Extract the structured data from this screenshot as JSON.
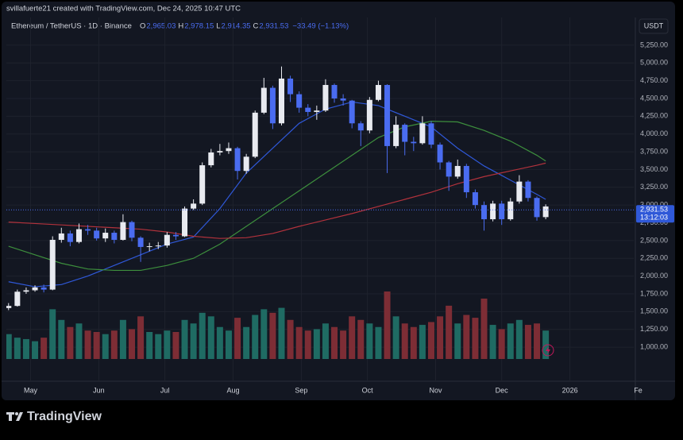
{
  "attribution": "svillafuerte21 created with TradingView.com, Dec 24, 2025 10:47 UTC",
  "symbol": "Ethereum / TetherUS · 1D · Binance",
  "ohlc": [
    {
      "label": "O",
      "value": "2,965.03"
    },
    {
      "label": "H",
      "value": "2,978.15"
    },
    {
      "label": "L",
      "value": "2,914.35"
    },
    {
      "label": "C",
      "value": "2,931.53"
    }
  ],
  "change": "−33.49 (−1.13%)",
  "currency": "USDT",
  "brand": "TradingView",
  "chart_data": {
    "type": "candlestick",
    "x": [
      0,
      4,
      8,
      12,
      16,
      20,
      24,
      28,
      32,
      36,
      40,
      44,
      48,
      52,
      56,
      60,
      64,
      68,
      72,
      76,
      80,
      84,
      88,
      92,
      96,
      100,
      104,
      108,
      112,
      116,
      120,
      124,
      128,
      132,
      136,
      140,
      144,
      148,
      152,
      156,
      160,
      164,
      168,
      172,
      176,
      180,
      184,
      188,
      192,
      196,
      200,
      204,
      208,
      212,
      216,
      220,
      224,
      228,
      232,
      236,
      240,
      244
    ],
    "open": [
      1550,
      1580,
      1780,
      1800,
      1840,
      1810,
      2510,
      2600,
      2480,
      2660,
      2640,
      2530,
      2610,
      2510,
      2760,
      2540,
      2410,
      2420,
      2430,
      2580,
      2560,
      2950,
      3020,
      3560,
      3740,
      3760,
      3800,
      3480,
      3680,
      4300,
      4650,
      4150,
      4780,
      4560,
      4370,
      4310,
      4330,
      4690,
      4500,
      4470,
      4150,
      4050,
      4480,
      4690,
      3830,
      4130,
      3890,
      3870,
      4150,
      3850,
      3600,
      3400,
      3550,
      3180,
      3000,
      2800,
      3020,
      2800,
      3050,
      3330,
      3100,
      2830
    ],
    "high": [
      1620,
      1810,
      1840,
      1870,
      1880,
      2560,
      2680,
      2640,
      2740,
      2720,
      2680,
      2670,
      2640,
      2870,
      2780,
      2560,
      2470,
      2480,
      2620,
      2620,
      2980,
      3080,
      3600,
      3790,
      3860,
      3880,
      3820,
      3720,
      4330,
      4790,
      4680,
      4950,
      4820,
      4600,
      4420,
      4400,
      4770,
      4710,
      4560,
      4480,
      4180,
      4520,
      4750,
      4700,
      4250,
      4150,
      3960,
      4250,
      4180,
      3880,
      3620,
      3640,
      3580,
      3220,
      3050,
      3060,
      3060,
      3100,
      3420,
      3350,
      3120,
      3010
    ],
    "low": [
      1520,
      1570,
      1750,
      1780,
      1770,
      1800,
      2470,
      2420,
      2460,
      2580,
      2500,
      2480,
      2460,
      2500,
      2490,
      2200,
      2350,
      2380,
      2400,
      2510,
      2550,
      2930,
      3000,
      3530,
      3700,
      3720,
      3360,
      3440,
      3660,
      4280,
      4070,
      4120,
      4450,
      4300,
      4250,
      4200,
      4310,
      4440,
      4400,
      4080,
      3830,
      4010,
      4460,
      3450,
      3800,
      3700,
      3760,
      3850,
      3800,
      3500,
      3200,
      3370,
      3100,
      2950,
      2640,
      2770,
      2720,
      2780,
      3020,
      3050,
      2780,
      2800
    ],
    "close": [
      1580,
      1780,
      1800,
      1840,
      1810,
      2510,
      2600,
      2480,
      2660,
      2640,
      2530,
      2610,
      2510,
      2760,
      2540,
      2410,
      2420,
      2430,
      2580,
      2560,
      2950,
      3020,
      3560,
      3740,
      3760,
      3800,
      3480,
      3680,
      4300,
      4650,
      4150,
      4780,
      4560,
      4370,
      4310,
      4330,
      4690,
      4500,
      4470,
      4150,
      4050,
      4480,
      4690,
      3830,
      4130,
      3890,
      3870,
      4150,
      3850,
      3600,
      3400,
      3550,
      3180,
      3000,
      2800,
      3020,
      2800,
      3050,
      3330,
      3100,
      2830,
      2980
    ],
    "volume": [
      35,
      30,
      28,
      25,
      30,
      70,
      55,
      45,
      50,
      40,
      38,
      35,
      40,
      55,
      42,
      60,
      38,
      35,
      40,
      38,
      55,
      50,
      65,
      60,
      45,
      40,
      58,
      45,
      62,
      70,
      65,
      72,
      55,
      45,
      40,
      42,
      50,
      45,
      40,
      60,
      55,
      50,
      45,
      95,
      60,
      50,
      45,
      48,
      52,
      60,
      75,
      50,
      62,
      58,
      85,
      48,
      42,
      50,
      55,
      48,
      50,
      40
    ],
    "up_color": "#e8eaf0",
    "down_color": "#4a6cf0",
    "volume_up_color": "#1f6b63",
    "volume_down_color": "#7d2d35",
    "moving_averages": [
      {
        "color": "#2f58d8",
        "x": [
          0,
          12,
          24,
          36,
          48,
          60,
          72,
          84,
          96,
          108,
          120,
          132,
          144,
          156,
          168,
          180,
          192,
          204,
          216,
          228,
          240,
          244
        ],
        "values": [
          1920,
          1850,
          1880,
          2000,
          2150,
          2300,
          2450,
          2550,
          2950,
          3450,
          3800,
          4150,
          4350,
          4450,
          4400,
          4250,
          4100,
          3800,
          3550,
          3350,
          3150,
          3080
        ]
      },
      {
        "color": "#3d8f3d",
        "x": [
          0,
          12,
          24,
          36,
          48,
          60,
          72,
          84,
          96,
          108,
          120,
          132,
          144,
          156,
          168,
          180,
          192,
          204,
          216,
          228,
          240,
          244
        ],
        "values": [
          2420,
          2300,
          2180,
          2100,
          2080,
          2080,
          2150,
          2250,
          2450,
          2700,
          2950,
          3200,
          3450,
          3700,
          3950,
          4100,
          4180,
          4170,
          4050,
          3900,
          3700,
          3620
        ]
      },
      {
        "color": "#b2323c",
        "x": [
          0,
          12,
          24,
          36,
          48,
          60,
          72,
          84,
          96,
          108,
          120,
          132,
          144,
          156,
          168,
          180,
          192,
          204,
          216,
          228,
          240,
          244
        ],
        "values": [
          2760,
          2740,
          2720,
          2700,
          2680,
          2660,
          2620,
          2560,
          2530,
          2540,
          2600,
          2700,
          2790,
          2880,
          2980,
          3080,
          3180,
          3300,
          3400,
          3480,
          3560,
          3590
        ]
      }
    ],
    "xlim": [
      -1,
      284
    ],
    "xticks": [
      {
        "value": 10,
        "label": "May"
      },
      {
        "value": 41,
        "label": "Jun"
      },
      {
        "value": 71,
        "label": "Jul"
      },
      {
        "value": 102,
        "label": "Aug"
      },
      {
        "value": 133,
        "label": "Sep"
      },
      {
        "value": 163,
        "label": "Oct"
      },
      {
        "value": 194,
        "label": "Nov"
      },
      {
        "value": 224,
        "label": "Dec"
      },
      {
        "value": 255,
        "label": "2026"
      },
      {
        "value": 286,
        "label": "Fe"
      }
    ],
    "ylim": [
      520,
      5640
    ],
    "yticks": [
      {
        "value": 1000,
        "label": "1,000.00"
      },
      {
        "value": 1250,
        "label": "1,250.00"
      },
      {
        "value": 1500,
        "label": "1,500.00"
      },
      {
        "value": 1750,
        "label": "1,750.00"
      },
      {
        "value": 2000,
        "label": "2,000.00"
      },
      {
        "value": 2250,
        "label": "2,250.00"
      },
      {
        "value": 2500,
        "label": "2,500.00"
      },
      {
        "value": 2750,
        "label": "2,750.00"
      },
      {
        "value": 3000,
        "label": "3,000.00"
      },
      {
        "value": 3250,
        "label": "3,250.00"
      },
      {
        "value": 3500,
        "label": "3,500.00"
      },
      {
        "value": 3750,
        "label": "3,750.00"
      },
      {
        "value": 4000,
        "label": "4,000.00"
      },
      {
        "value": 4250,
        "label": "4,250.00"
      },
      {
        "value": 4500,
        "label": "4,500.00"
      },
      {
        "value": 4750,
        "label": "4,750.00"
      },
      {
        "value": 5000,
        "label": "5,000.00"
      },
      {
        "value": 5250,
        "label": "5,250.00"
      }
    ],
    "last_price": {
      "value": 2931.53,
      "label": "2,931.53"
    },
    "countdown": "13:12:03",
    "grid": true
  }
}
